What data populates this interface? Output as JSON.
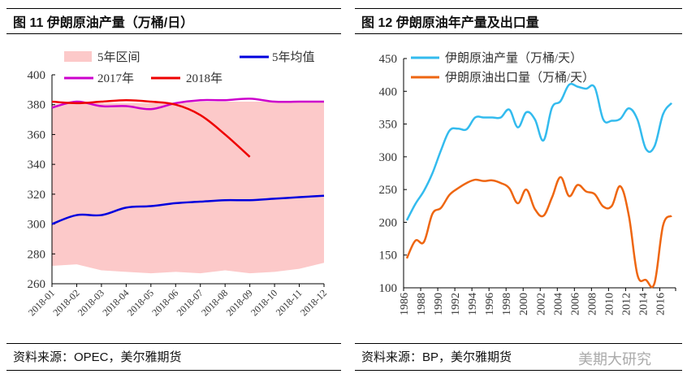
{
  "left_panel": {
    "title": "图 11   伊朗原油产量（万桶/日）",
    "source": "资料来源：OPEC，美尔雅期货"
  },
  "right_panel": {
    "title": "图 12  伊朗原油年产量及出口量",
    "source": "资料来源：BP，美尔雅期货",
    "watermark": "美期大研究"
  },
  "chart_data": [
    {
      "type": "line",
      "categories": [
        "2018-01",
        "2018-02",
        "2018-03",
        "2018-04",
        "2018-05",
        "2018-06",
        "2018-07",
        "2018-08",
        "2018-09",
        "2018-10",
        "2018-11",
        "2018-12"
      ],
      "ylim": [
        260,
        400
      ],
      "yticks": [
        260,
        280,
        300,
        320,
        340,
        360,
        380,
        400
      ],
      "legend": "top",
      "band": {
        "name": "5年区间",
        "color": "#fcc9c9",
        "upper": [
          380,
          382,
          381,
          381,
          381,
          381,
          382,
          382,
          382,
          382,
          382,
          382
        ],
        "lower": [
          272,
          273,
          269,
          268,
          267,
          268,
          267,
          269,
          267,
          268,
          270,
          274
        ]
      },
      "series": [
        {
          "name": "5年均值",
          "color": "#0000dd",
          "values": [
            300,
            306,
            306,
            311,
            312,
            314,
            315,
            316,
            316,
            317,
            318,
            319
          ]
        },
        {
          "name": "2017年",
          "color": "#cc00cc",
          "values": [
            378,
            382,
            379,
            379,
            377,
            381,
            383,
            383,
            384,
            382,
            382,
            382
          ]
        },
        {
          "name": "2018年",
          "color": "#ee0000",
          "values": [
            382,
            381,
            382,
            383,
            382,
            380,
            373,
            360,
            345,
            null,
            null,
            null
          ]
        }
      ]
    },
    {
      "type": "line",
      "x": [
        1986,
        1987,
        1988,
        1989,
        1990,
        1991,
        1992,
        1993,
        1994,
        1995,
        1996,
        1997,
        1998,
        1999,
        2000,
        2001,
        2002,
        2003,
        2004,
        2005,
        2006,
        2007,
        2008,
        2009,
        2010,
        2011,
        2012,
        2013,
        2014,
        2015,
        2016,
        2017
      ],
      "xticks": [
        "1986",
        "1988",
        "1990",
        "1992",
        "1994",
        "1996",
        "1998",
        "2000",
        "2002",
        "2004",
        "2006",
        "2008",
        "2010",
        "2012",
        "2014",
        "2016"
      ],
      "ylim": [
        100,
        450
      ],
      "yticks": [
        100,
        150,
        200,
        250,
        300,
        350,
        400,
        450
      ],
      "legend": "top-left",
      "series": [
        {
          "name": "伊朗原油产量（万桶/天）",
          "color": "#33bbee",
          "values": [
            203,
            228,
            248,
            275,
            310,
            340,
            343,
            342,
            360,
            360,
            360,
            360,
            372,
            345,
            368,
            357,
            325,
            375,
            385,
            410,
            407,
            404,
            406,
            357,
            355,
            358,
            374,
            357,
            312,
            316,
            365,
            382
          ]
        },
        {
          "name": "伊朗原油出口量（万桶/天）",
          "color": "#ee6611",
          "values": [
            145,
            172,
            170,
            213,
            222,
            242,
            252,
            260,
            265,
            263,
            264,
            260,
            252,
            229,
            250,
            220,
            210,
            238,
            269,
            240,
            257,
            247,
            243,
            224,
            225,
            255,
            210,
            120,
            112,
            107,
            195,
            210
          ]
        }
      ]
    }
  ]
}
